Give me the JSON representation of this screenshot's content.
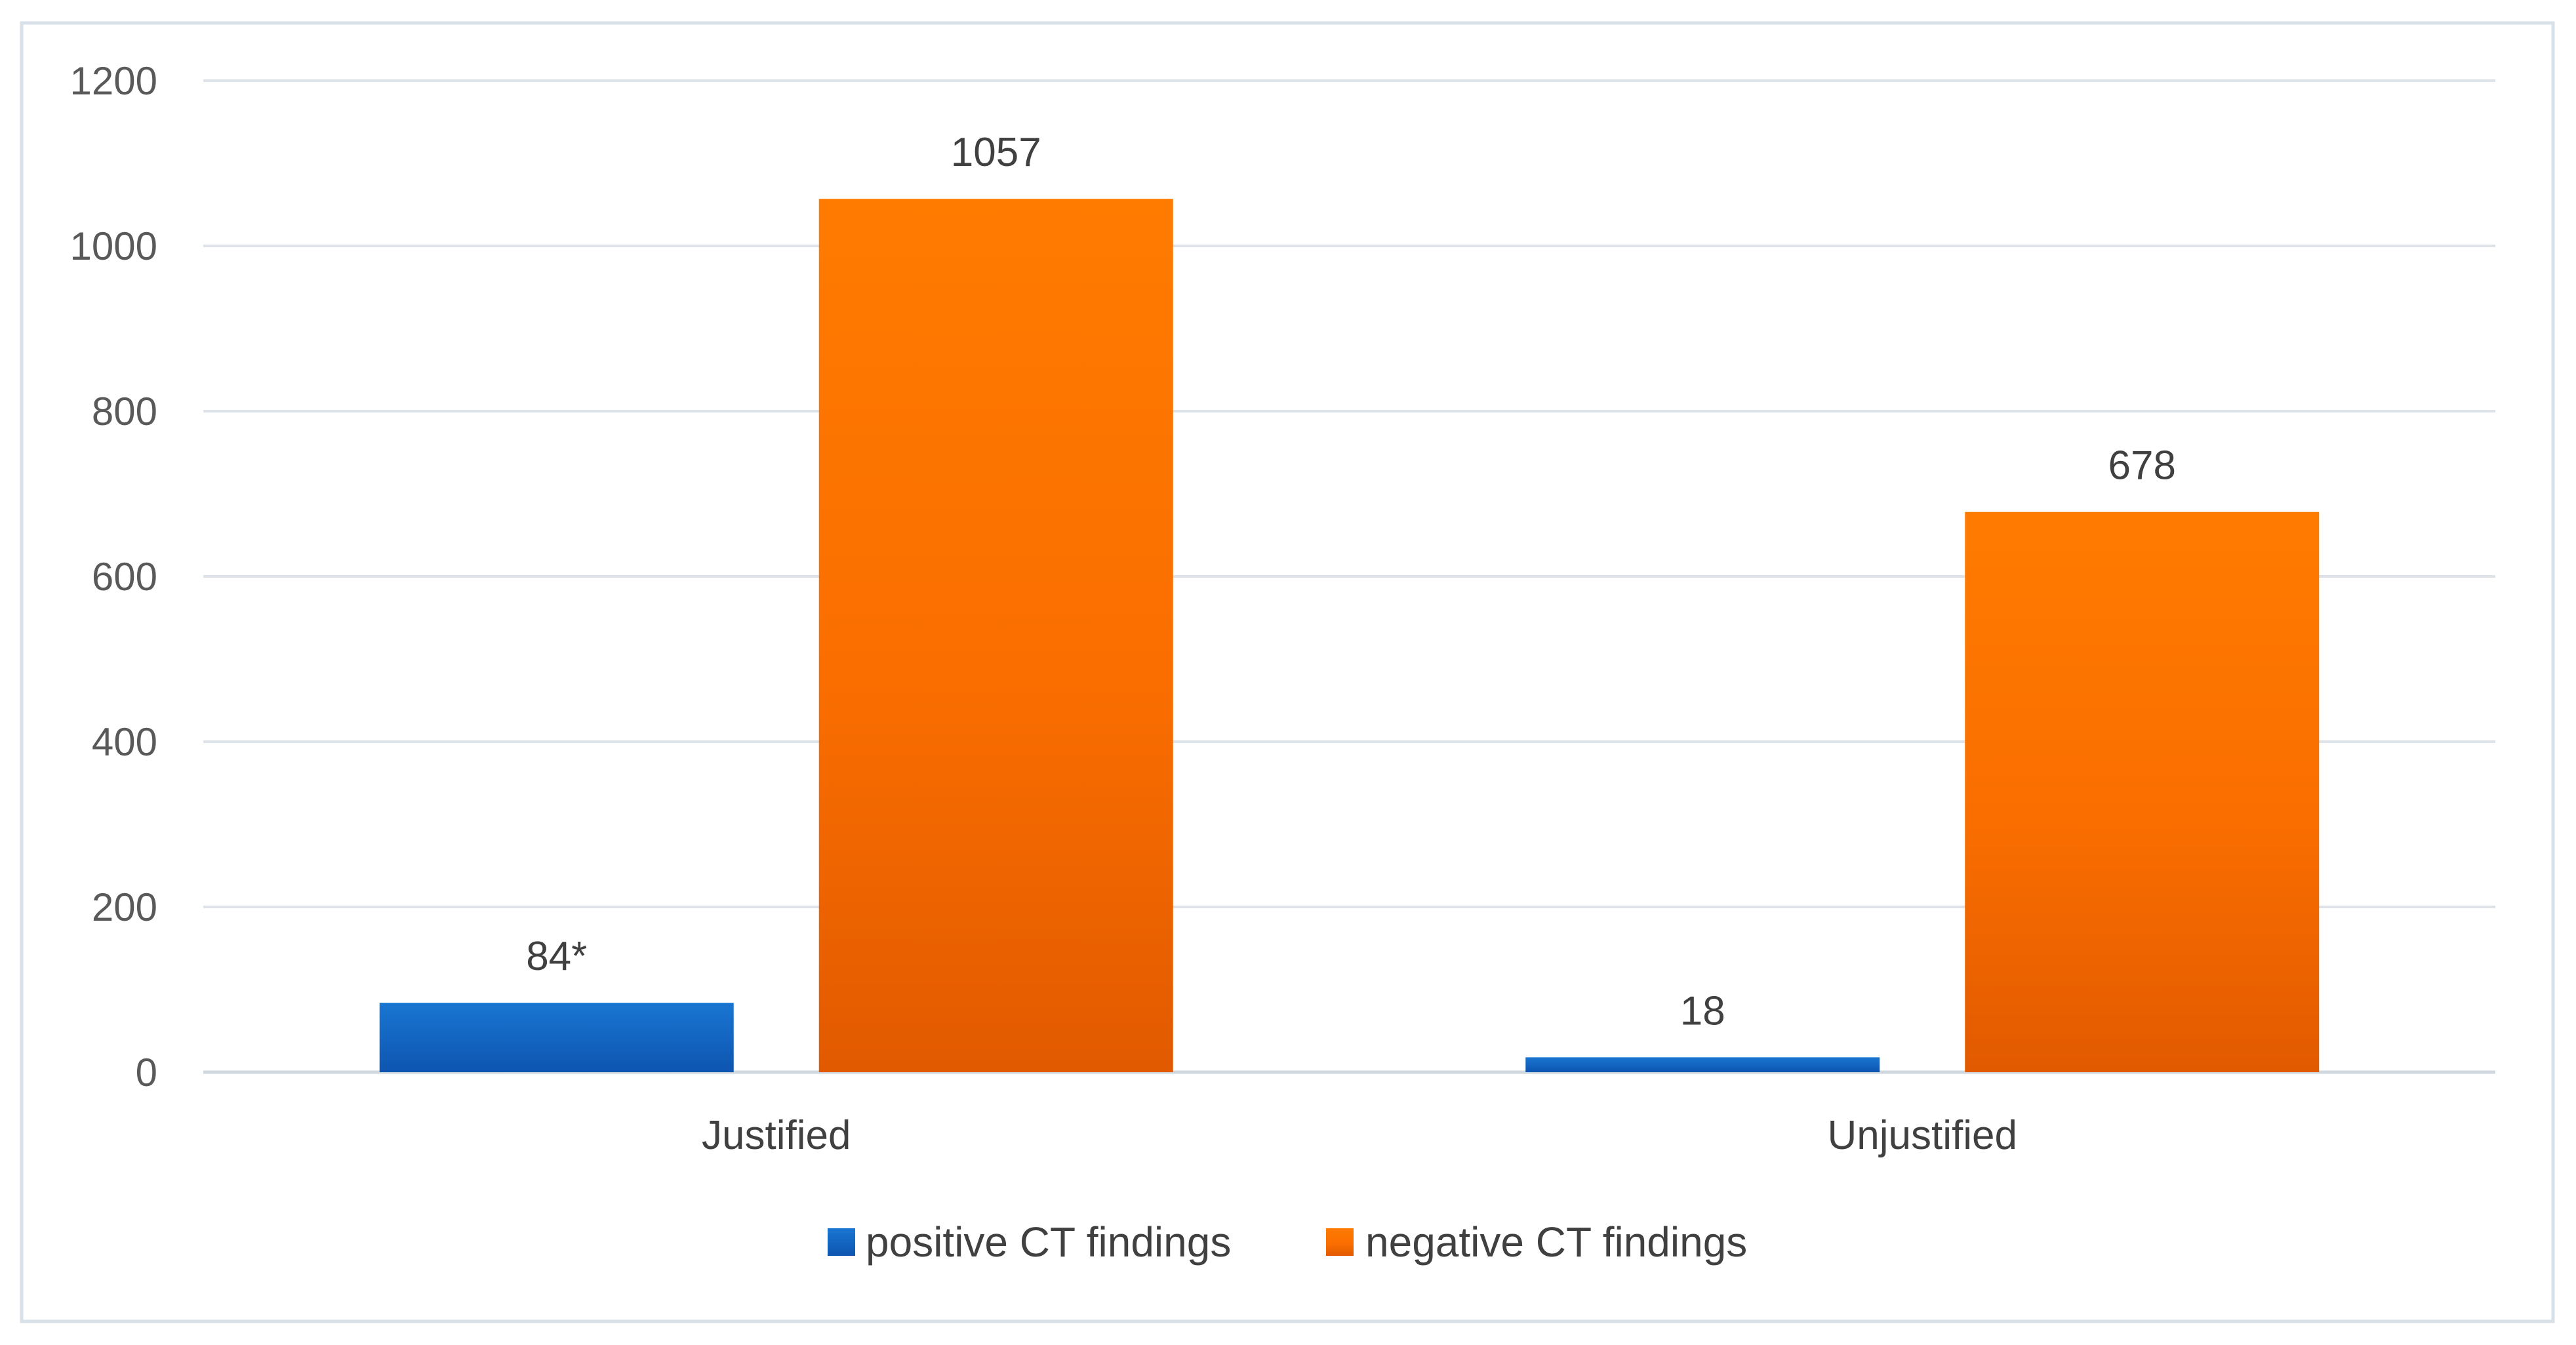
{
  "chart_data": {
    "type": "bar",
    "title": "",
    "xlabel": "",
    "ylabel": "",
    "categories": [
      "Justified",
      "Unjustified"
    ],
    "series": [
      {
        "name": "positive CT findings",
        "values": [
          84,
          18
        ],
        "labels": [
          "84*",
          "18"
        ],
        "color": "#1565C0"
      },
      {
        "name": "negative CT findings",
        "values": [
          1057,
          678
        ],
        "labels": [
          "1057",
          "678"
        ],
        "color": "#F36F00"
      }
    ],
    "ylim": [
      0,
      1200
    ],
    "yticks": [
      0,
      200,
      400,
      600,
      800,
      1000,
      1200
    ],
    "ytick_labels": [
      "0",
      "200",
      "400",
      "600",
      "800",
      "1000",
      "1200"
    ],
    "grid": true,
    "legend_position": "bottom-center"
  }
}
